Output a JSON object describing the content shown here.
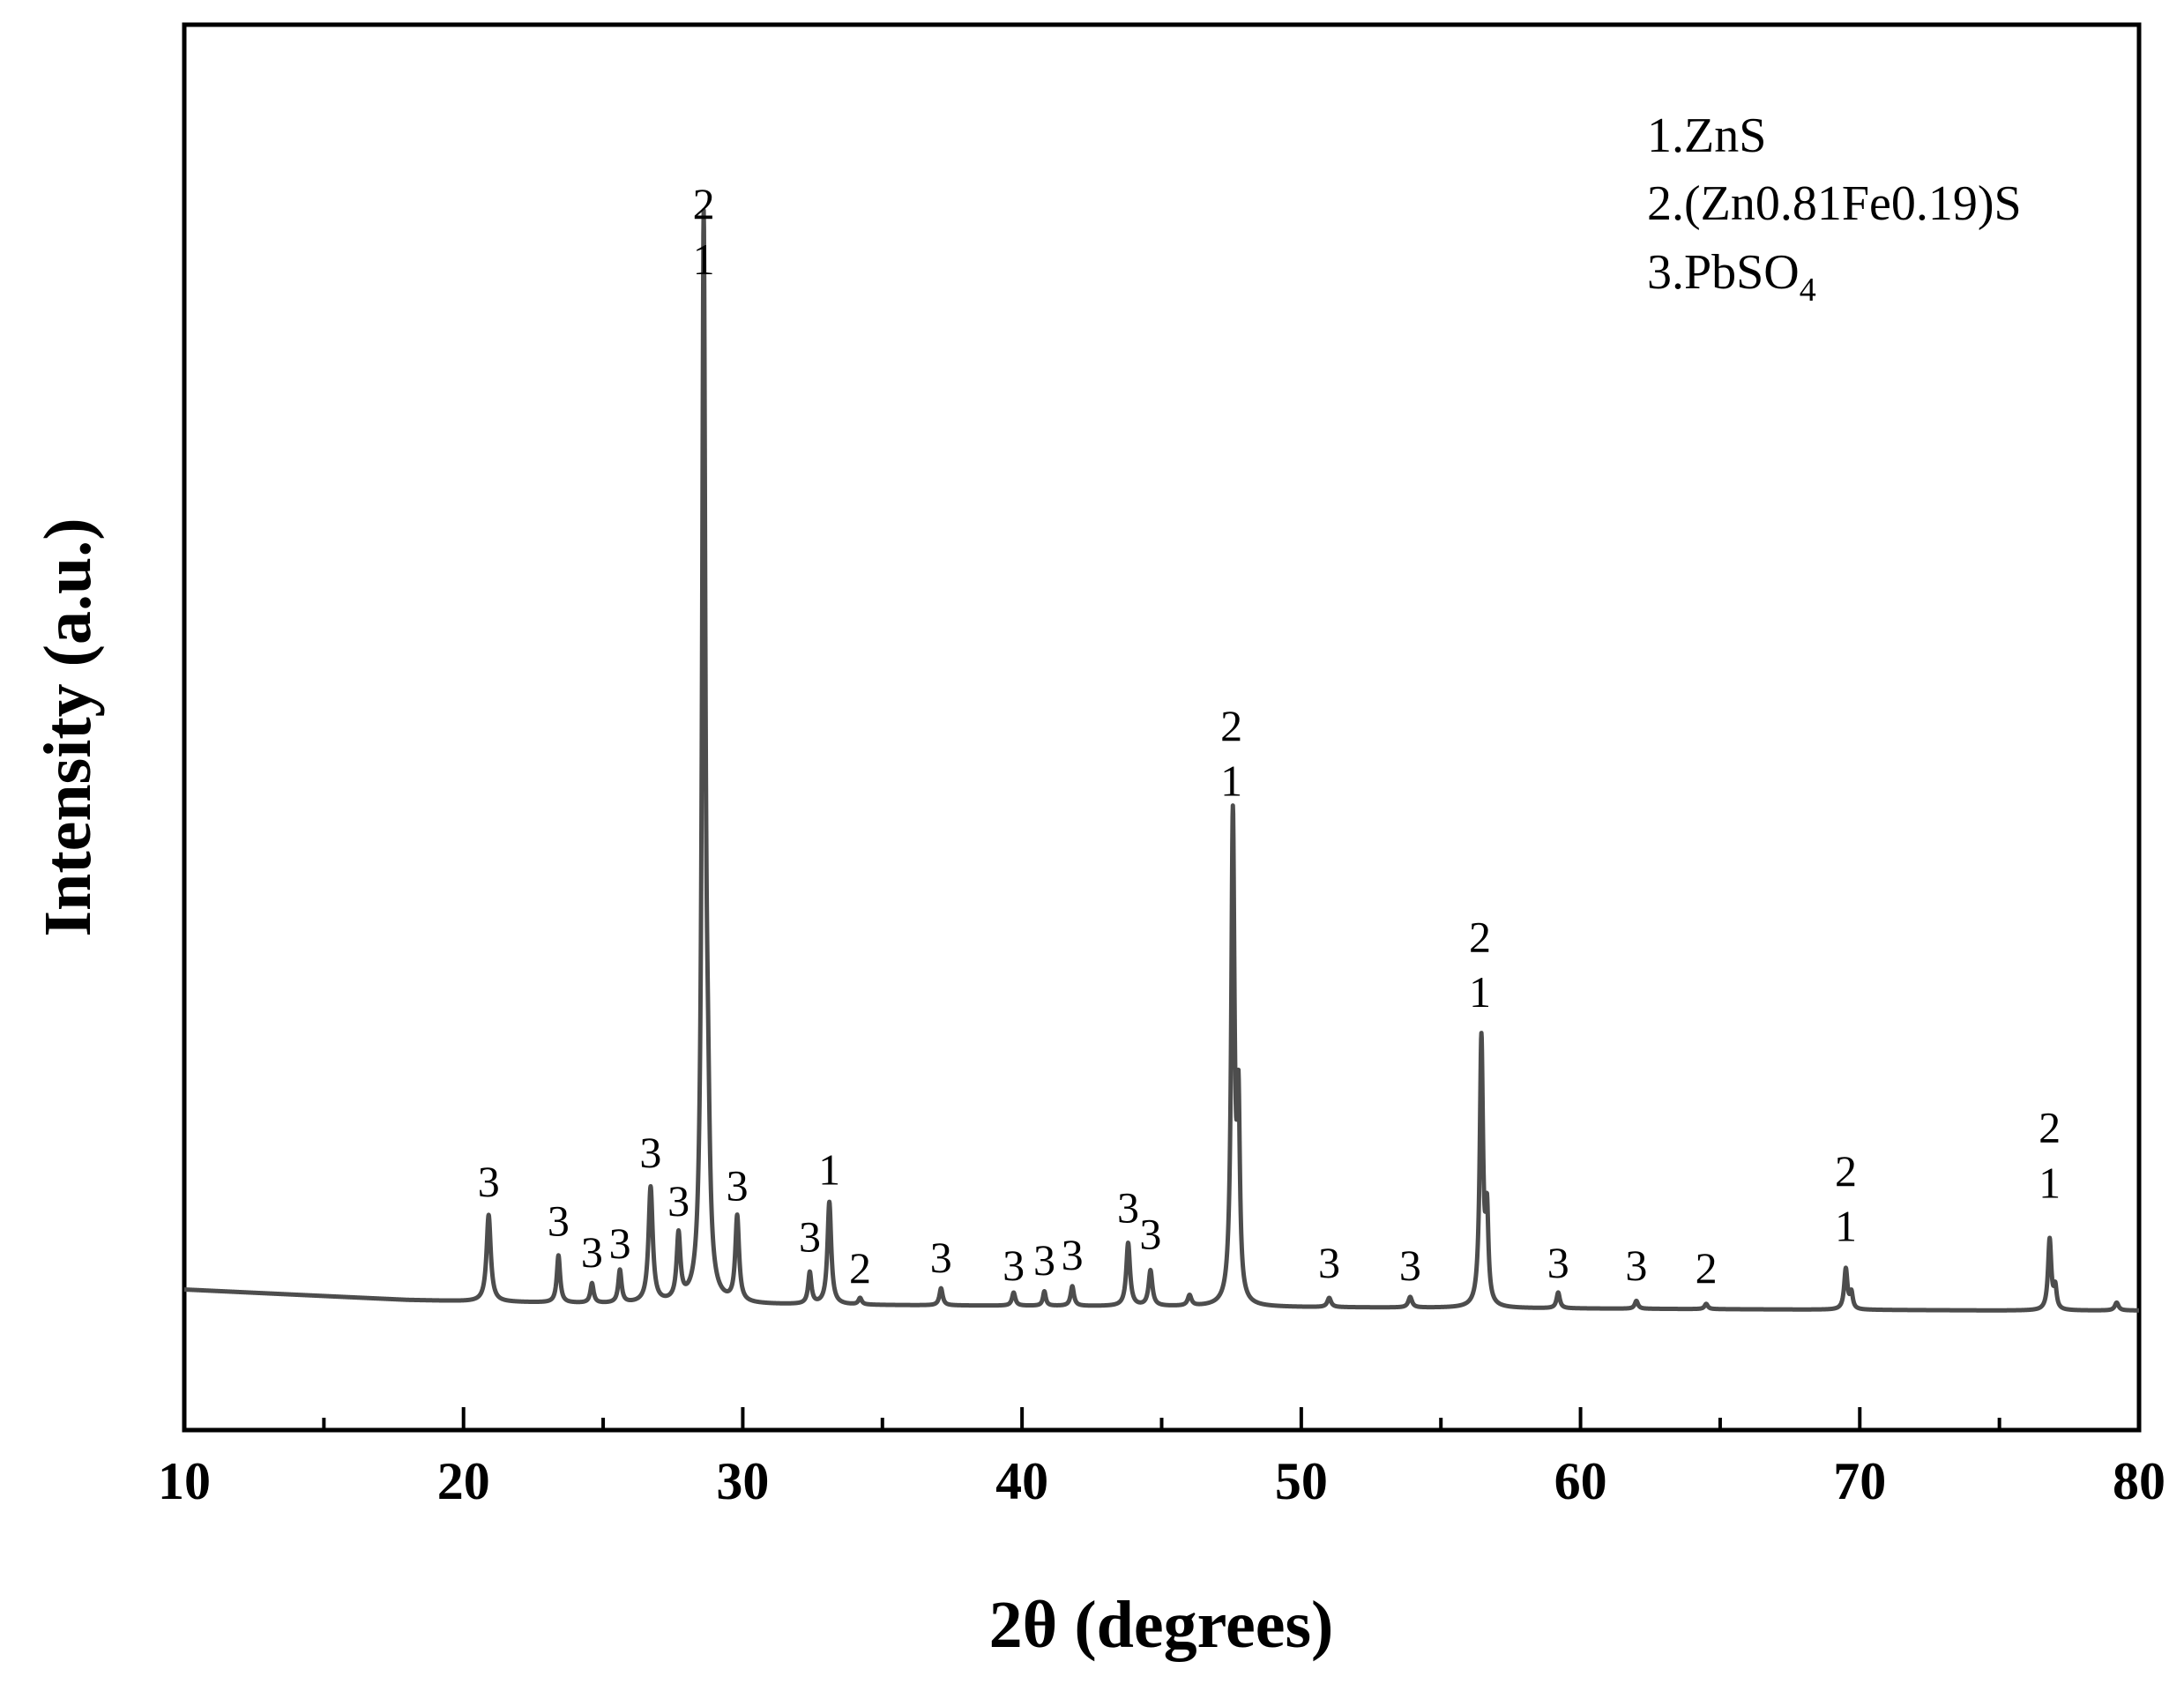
{
  "chart_data": {
    "type": "line",
    "title": "",
    "xlabel": "2θ (degrees)",
    "ylabel": "Intensity (a.u.)",
    "xlim": [
      10,
      80
    ],
    "ylim": [
      0,
      100
    ],
    "x_ticks": [
      "10",
      "20",
      "30",
      "40",
      "50",
      "60",
      "70",
      "80"
    ],
    "y_ticks_shown": false,
    "line_color": "#4d4d4d",
    "legend": {
      "placement": "top-right",
      "items": [
        {
          "prefix": "1.ZnS",
          "sub": ""
        },
        {
          "prefix": "2.(Zn0.81Fe0.19)S",
          "sub": ""
        },
        {
          "prefix": "3.PbSO",
          "sub": "4"
        }
      ]
    },
    "baseline": [
      [
        10,
        10.7
      ],
      [
        12,
        10.5
      ],
      [
        15,
        10.2
      ],
      [
        18,
        9.9
      ],
      [
        20,
        9.8
      ],
      [
        25,
        9.6
      ],
      [
        30,
        9.55
      ],
      [
        35,
        9.5
      ],
      [
        40,
        9.45
      ],
      [
        45,
        9.4
      ],
      [
        50,
        9.35
      ],
      [
        55,
        9.3
      ],
      [
        60,
        9.25
      ],
      [
        65,
        9.2
      ],
      [
        70,
        9.15
      ],
      [
        75,
        9.1
      ],
      [
        80,
        9.1
      ]
    ],
    "peaks": [
      {
        "x": 20.9,
        "h": 6.6,
        "w": 0.09
      },
      {
        "x": 23.4,
        "h": 3.6,
        "w": 0.07
      },
      {
        "x": 24.6,
        "h": 1.5,
        "w": 0.07
      },
      {
        "x": 25.6,
        "h": 2.5,
        "w": 0.07
      },
      {
        "x": 26.7,
        "h": 8.8,
        "w": 0.09
      },
      {
        "x": 27.7,
        "h": 5.0,
        "w": 0.08
      },
      {
        "x": 28.6,
        "h": 81.2,
        "w": 0.07
      },
      {
        "x": 28.75,
        "h": 9.0,
        "w": 0.08
      },
      {
        "x": 29.8,
        "h": 6.5,
        "w": 0.08
      },
      {
        "x": 32.4,
        "h": 2.4,
        "w": 0.07
      },
      {
        "x": 33.1,
        "h": 7.8,
        "w": 0.08
      },
      {
        "x": 34.2,
        "h": 0.5,
        "w": 0.07
      },
      {
        "x": 37.1,
        "h": 1.3,
        "w": 0.07
      },
      {
        "x": 39.7,
        "h": 1.0,
        "w": 0.07
      },
      {
        "x": 40.8,
        "h": 1.1,
        "w": 0.06
      },
      {
        "x": 41.8,
        "h": 1.5,
        "w": 0.07
      },
      {
        "x": 43.8,
        "h": 4.8,
        "w": 0.08
      },
      {
        "x": 44.6,
        "h": 2.7,
        "w": 0.08
      },
      {
        "x": 46.0,
        "h": 0.8,
        "w": 0.08
      },
      {
        "x": 47.55,
        "h": 37.0,
        "w": 0.07
      },
      {
        "x": 47.75,
        "h": 14.0,
        "w": 0.06
      },
      {
        "x": 51.0,
        "h": 0.7,
        "w": 0.08
      },
      {
        "x": 53.9,
        "h": 0.8,
        "w": 0.08
      },
      {
        "x": 56.45,
        "h": 20.4,
        "w": 0.07
      },
      {
        "x": 56.65,
        "h": 6.5,
        "w": 0.06
      },
      {
        "x": 59.2,
        "h": 1.2,
        "w": 0.07
      },
      {
        "x": 62.0,
        "h": 0.6,
        "w": 0.07
      },
      {
        "x": 64.5,
        "h": 0.4,
        "w": 0.07
      },
      {
        "x": 69.5,
        "h": 3.1,
        "w": 0.07
      },
      {
        "x": 69.7,
        "h": 1.2,
        "w": 0.06
      },
      {
        "x": 76.8,
        "h": 5.4,
        "w": 0.07
      },
      {
        "x": 77.0,
        "h": 1.6,
        "w": 0.06
      },
      {
        "x": 79.2,
        "h": 0.6,
        "w": 0.08
      }
    ],
    "annotations": [
      {
        "x": 20.9,
        "y": 17.8,
        "text": "3"
      },
      {
        "x": 23.4,
        "y": 14.8,
        "text": "3"
      },
      {
        "x": 24.6,
        "y": 12.4,
        "text": "3"
      },
      {
        "x": 25.6,
        "y": 13.1,
        "text": "3"
      },
      {
        "x": 26.7,
        "y": 20.0,
        "text": "3"
      },
      {
        "x": 27.7,
        "y": 16.3,
        "text": "3"
      },
      {
        "x": 29.8,
        "y": 17.5,
        "text": "3"
      },
      {
        "x": 32.4,
        "y": 13.6,
        "text": "3"
      },
      {
        "x": 33.1,
        "y": 18.7,
        "text": "1"
      },
      {
        "x": 34.2,
        "y": 11.2,
        "text": "2"
      },
      {
        "x": 37.1,
        "y": 12.0,
        "text": "3"
      },
      {
        "x": 39.7,
        "y": 11.4,
        "text": "3"
      },
      {
        "x": 40.8,
        "y": 11.8,
        "text": "3"
      },
      {
        "x": 41.8,
        "y": 12.2,
        "text": "3"
      },
      {
        "x": 43.8,
        "y": 15.8,
        "text": "3"
      },
      {
        "x": 44.6,
        "y": 13.8,
        "text": "3"
      },
      {
        "x": 51.0,
        "y": 11.6,
        "text": "3"
      },
      {
        "x": 53.9,
        "y": 11.4,
        "text": "3"
      },
      {
        "x": 59.2,
        "y": 11.6,
        "text": "3"
      },
      {
        "x": 62.0,
        "y": 11.4,
        "text": "3"
      },
      {
        "x": 64.5,
        "y": 11.2,
        "text": "2"
      },
      {
        "x": 28.6,
        "y": 92.2,
        "text": "2"
      },
      {
        "x": 28.6,
        "y": 88.0,
        "text": "1"
      },
      {
        "x": 47.5,
        "y": 52.5,
        "text": "2"
      },
      {
        "x": 47.5,
        "y": 48.3,
        "text": "1"
      },
      {
        "x": 56.4,
        "y": 36.4,
        "text": "2"
      },
      {
        "x": 56.4,
        "y": 32.2,
        "text": "1"
      },
      {
        "x": 69.5,
        "y": 18.6,
        "text": "2"
      },
      {
        "x": 69.5,
        "y": 14.4,
        "text": "1"
      },
      {
        "x": 76.8,
        "y": 21.9,
        "text": "2"
      },
      {
        "x": 76.8,
        "y": 17.7,
        "text": "1"
      }
    ]
  }
}
